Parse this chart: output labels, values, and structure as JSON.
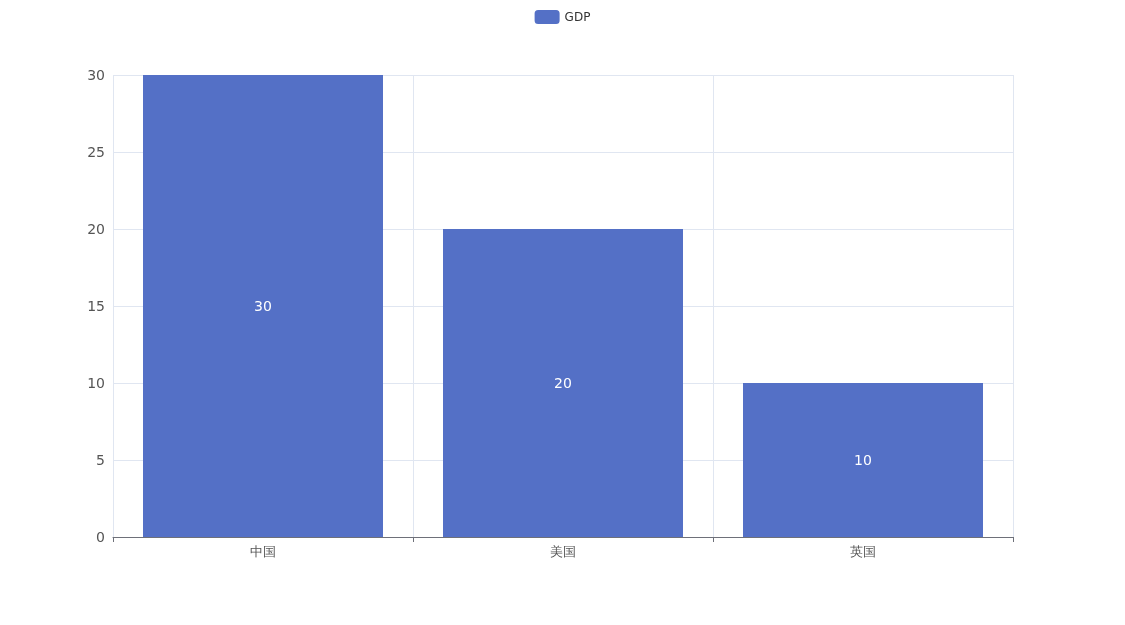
{
  "chart_data": {
    "type": "bar",
    "categories": [
      "中国",
      "美国",
      "英国"
    ],
    "series": [
      {
        "name": "GDP",
        "color": "#5470c6",
        "values": [
          30,
          20,
          10
        ]
      }
    ],
    "ylim": [
      0,
      30
    ],
    "yticks": [
      0,
      5,
      10,
      15,
      20,
      25,
      30
    ],
    "grid": true,
    "legend": "top",
    "data_labels": true
  }
}
